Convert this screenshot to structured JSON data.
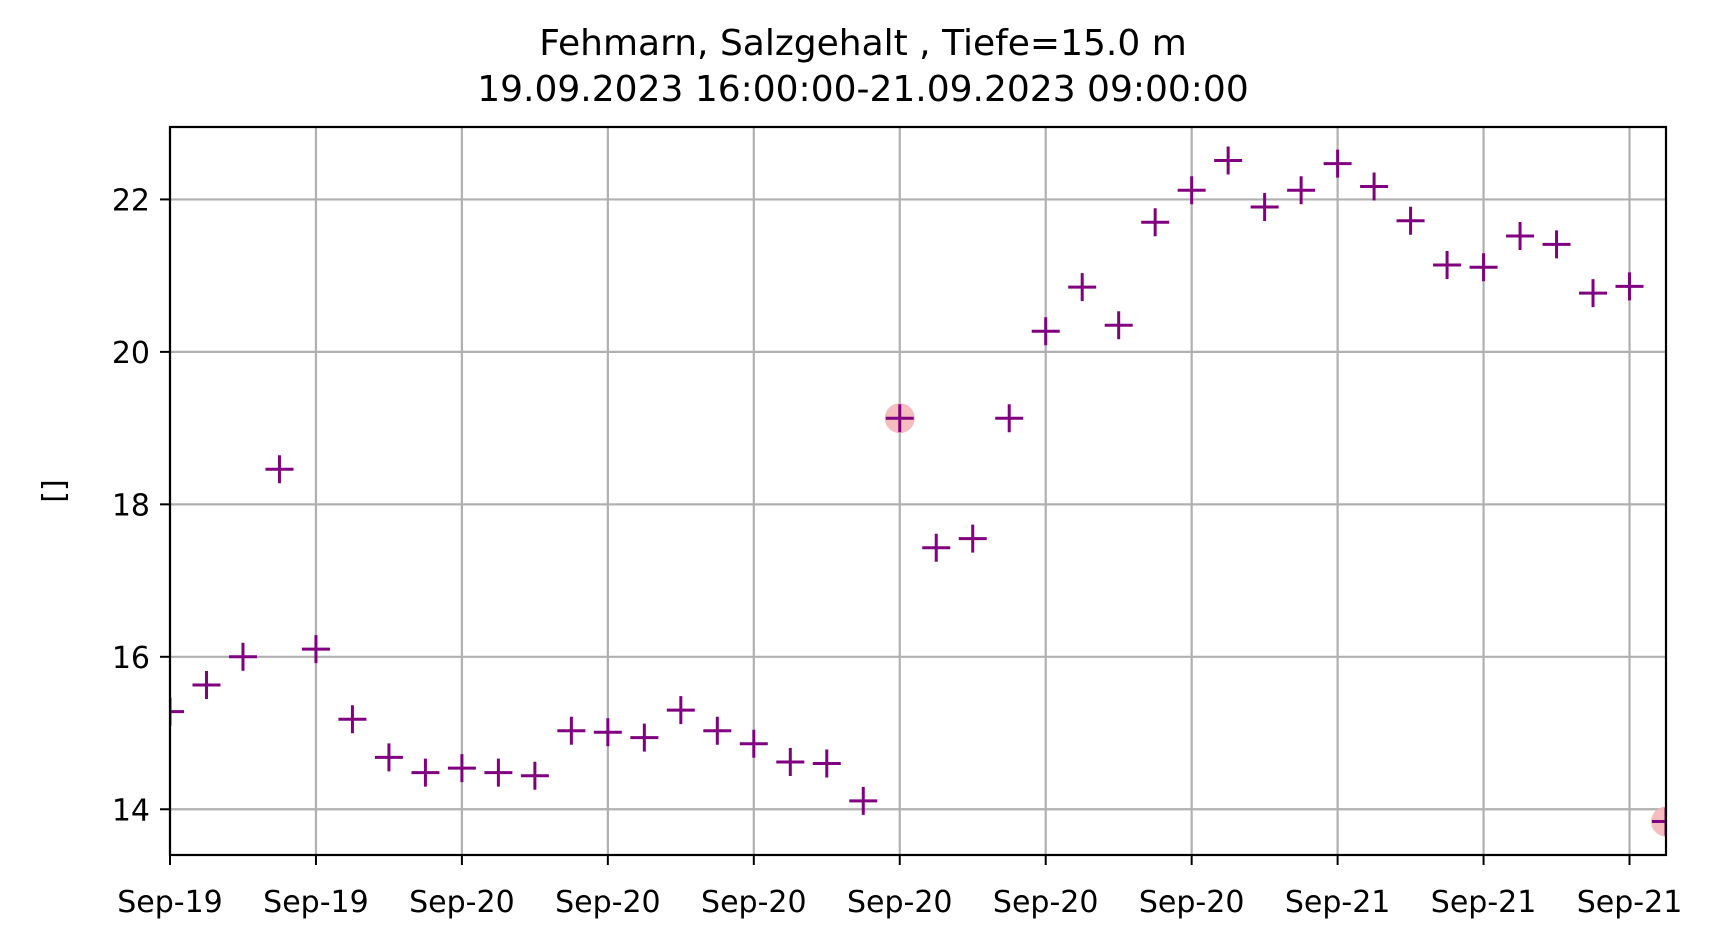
{
  "chart_data": {
    "type": "scatter",
    "title": "Fehmarn, Salzgehalt , Tiefe=15.0 m",
    "subtitle": "19.09.2023 16:00:00-21.09.2023 09:00:00",
    "xlabel": "",
    "ylabel": "[]",
    "ylim": [
      13.4,
      22.95
    ],
    "xlim": [
      0,
      41
    ],
    "grid": true,
    "x_tick_labels": [
      "Sep-19",
      "Sep-19",
      "Sep-20",
      "Sep-20",
      "Sep-20",
      "Sep-20",
      "Sep-20",
      "Sep-20",
      "Sep-21",
      "Sep-21",
      "Sep-21"
    ],
    "x_tick_hours": [
      0,
      4,
      8,
      12,
      16,
      20,
      24,
      28,
      32,
      36,
      40
    ],
    "y_ticks": [
      14,
      16,
      18,
      20,
      22
    ],
    "series": [
      {
        "marker": "plus",
        "color": "#800080",
        "x": [
          0,
          1,
          2,
          3,
          4,
          5,
          6,
          7,
          8,
          9,
          10,
          11,
          12,
          13,
          14,
          15,
          16,
          17,
          18,
          19,
          20,
          21,
          22,
          23,
          24,
          25,
          26,
          27,
          28,
          29,
          30,
          31,
          32,
          33,
          34,
          35,
          36,
          37,
          38,
          39,
          40,
          41
        ],
        "y": [
          15.28,
          15.63,
          16.0,
          18.46,
          16.1,
          15.18,
          14.68,
          14.48,
          14.54,
          14.48,
          14.44,
          15.03,
          15.01,
          14.94,
          15.3,
          15.03,
          14.86,
          14.62,
          14.6,
          14.11,
          19.13,
          17.43,
          17.55,
          19.13,
          20.27,
          20.85,
          20.35,
          21.7,
          22.12,
          22.51,
          21.9,
          22.12,
          22.47,
          22.17,
          21.72,
          21.14,
          21.11,
          21.52,
          21.41,
          20.77,
          20.86,
          13.84
        ]
      }
    ],
    "highlighted_points": {
      "color": "#f4b6b6",
      "x": [
        20,
        41
      ],
      "y": [
        19.13,
        13.84
      ]
    }
  }
}
